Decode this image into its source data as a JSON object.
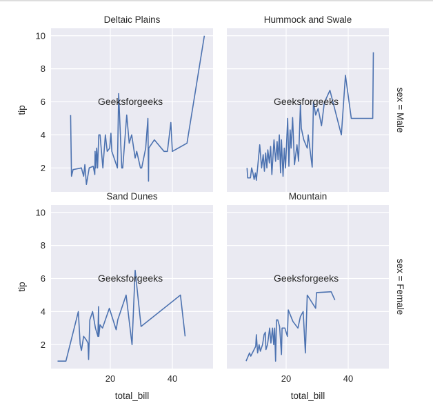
{
  "chart_data": {
    "type": "line",
    "layout": "facet grid 2x2 (rows: sex, cols: region)",
    "xlabel": "total_bill",
    "ylabel": "tip",
    "xlim": [
      0.9,
      53.1
    ],
    "ylim": [
      0.55,
      10.45
    ],
    "xticks": [
      20,
      40
    ],
    "yticks": [
      2,
      4,
      6,
      8,
      10
    ],
    "grid": true,
    "line_color": "#4c72b0",
    "panel_bg": "#eaeaf2",
    "annotation": {
      "text": "Geeksforgeeks",
      "x": 16,
      "y": 6
    },
    "row_labels": [
      "sex = Male",
      "sex = Female"
    ],
    "panels": [
      {
        "title": "Deltaic Plains",
        "row": 0,
        "col": 0,
        "x": [
          7.2,
          7.5,
          8,
          10.7,
          11.4,
          11.8,
          12.3,
          13.2,
          14.5,
          15,
          15.1,
          15.3,
          15.6,
          15.9,
          16.3,
          16.7,
          17.6,
          18.4,
          19,
          19.8,
          20.2,
          20.5,
          22.3,
          22.7,
          23.7,
          24,
          25.3,
          26.1,
          26.9,
          28,
          28.5,
          29.7,
          30.1,
          31.4,
          32.1,
          32.3,
          32.4,
          34.2,
          37.3,
          38.4,
          39.5,
          40,
          44.7,
          50.3
        ],
        "y": [
          5.2,
          1.5,
          1.9,
          2,
          1.5,
          2.2,
          1,
          2,
          2.1,
          1.6,
          3,
          2,
          3.2,
          2,
          4,
          4,
          2,
          4,
          3,
          3.2,
          4.1,
          3,
          2,
          6.5,
          2,
          2,
          5.2,
          3.5,
          4,
          2.6,
          3,
          2,
          2,
          3.2,
          5,
          1.2,
          3.2,
          3.7,
          3,
          3,
          4.75,
          3,
          3.5,
          10
        ]
      },
      {
        "title": "Hummock and Swale",
        "row": 0,
        "col": 1,
        "x": [
          7.4,
          7.6,
          8.5,
          8.9,
          9.3,
          9.7,
          10.1,
          10.4,
          10.8,
          11.5,
          12.1,
          12.6,
          13,
          13.4,
          13.8,
          14.1,
          14.6,
          15,
          15.4,
          16.1,
          16.6,
          17.1,
          17.4,
          17.8,
          18.2,
          18.5,
          19,
          19.4,
          19.8,
          20.5,
          20.9,
          21.3,
          21.6,
          22.1,
          22.7,
          23.5,
          24,
          24.6,
          24.9,
          25.7,
          26.8,
          27.1,
          28.4,
          28.8,
          29.5,
          30.3,
          31.4,
          32.3,
          34.1,
          37.8,
          39.1,
          41,
          47.9,
          48.1
        ],
        "y": [
          2,
          1.4,
          1.4,
          2,
          1.7,
          1.3,
          1.7,
          1.25,
          2,
          3.4,
          2,
          2.8,
          1.8,
          2.9,
          2,
          3.1,
          2.3,
          3.3,
          1.6,
          3.7,
          2.4,
          3.6,
          2.5,
          4,
          1.7,
          3.7,
          1.5,
          3.2,
          2,
          5,
          2.1,
          4.3,
          3.2,
          5.05,
          2.2,
          3.4,
          2.4,
          5.85,
          4.4,
          3.7,
          3.2,
          4,
          2.05,
          6,
          5.2,
          5.6,
          4.55,
          5.95,
          6.7,
          4,
          7.6,
          5,
          5,
          9
        ]
      },
      {
        "title": "Sand Dunes",
        "row": 1,
        "col": 0,
        "x": [
          3,
          5.7,
          9.7,
          10.3,
          10.7,
          11.4,
          12.2,
          12.8,
          13,
          13.4,
          14.3,
          15.2,
          16,
          16.2,
          16.3,
          16.7,
          17.5,
          19.7,
          21.9,
          22.4,
          25.1,
          27,
          28,
          29.9,
          42.6,
          44.1
        ],
        "y": [
          1,
          1,
          4,
          2,
          1.65,
          2.5,
          2.3,
          2.1,
          1.1,
          3.5,
          4,
          3,
          2.5,
          4.3,
          2.5,
          3.2,
          3,
          4.2,
          2.9,
          3.5,
          5,
          2,
          6.5,
          3.1,
          5,
          2.5
        ]
      },
      {
        "title": "Mountain",
        "row": 1,
        "col": 1,
        "x": [
          7.1,
          8.2,
          8.6,
          10.2,
          10.4,
          10.8,
          11.3,
          11.7,
          12.4,
          12.9,
          13.3,
          13.5,
          14,
          14.7,
          15.1,
          15.6,
          16,
          16.3,
          16.6,
          16.9,
          17.3,
          17.9,
          18.5,
          18.7,
          19.6,
          20.4,
          20.7,
          22.2,
          23.8,
          24.6,
          25.5,
          26.2,
          26.8,
          29.5,
          29.8,
          34.5,
          35.7
        ],
        "y": [
          1,
          1.5,
          1.3,
          1.9,
          2.6,
          1.5,
          2,
          1.6,
          2,
          2.6,
          2.75,
          1.7,
          2,
          3,
          2.1,
          3,
          2,
          3,
          1,
          3.5,
          3.5,
          3.1,
          1.4,
          3,
          3,
          2.5,
          4.1,
          3.4,
          3,
          3.7,
          4,
          1.5,
          5,
          4.2,
          5.15,
          5.2,
          4.7
        ]
      }
    ]
  }
}
